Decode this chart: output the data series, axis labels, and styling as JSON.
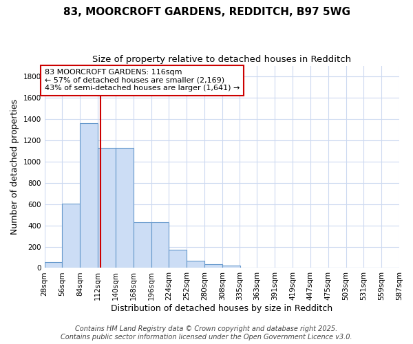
{
  "title_line1": "83, MOORCROFT GARDENS, REDDITCH, B97 5WG",
  "title_line2": "Size of property relative to detached houses in Redditch",
  "xlabel": "Distribution of detached houses by size in Redditch",
  "ylabel": "Number of detached properties",
  "background_color": "#ffffff",
  "plot_bg_color": "#ffffff",
  "bar_color": "#ccddf5",
  "bar_edge_color": "#6699cc",
  "grid_color": "#ccd9f0",
  "bin_edges": [
    28,
    56,
    84,
    112,
    140,
    168,
    196,
    224,
    252,
    280,
    308,
    335,
    363,
    391,
    419,
    447,
    475,
    503,
    531,
    559,
    587
  ],
  "bin_labels": [
    "28sqm",
    "56sqm",
    "84sqm",
    "112sqm",
    "140sqm",
    "168sqm",
    "196sqm",
    "224sqm",
    "252sqm",
    "280sqm",
    "308sqm",
    "335sqm",
    "363sqm",
    "391sqm",
    "419sqm",
    "447sqm",
    "475sqm",
    "503sqm",
    "531sqm",
    "559sqm",
    "587sqm"
  ],
  "counts": [
    56,
    605,
    1360,
    1130,
    1130,
    430,
    430,
    170,
    65,
    35,
    20,
    5,
    5,
    0,
    0,
    0,
    0,
    0,
    0,
    0
  ],
  "property_size": 116,
  "red_line_color": "#cc0000",
  "annotation_text": "83 MOORCROFT GARDENS: 116sqm\n← 57% of detached houses are smaller (2,169)\n43% of semi-detached houses are larger (1,641) →",
  "annotation_box_color": "#ffffff",
  "annotation_border_color": "#cc0000",
  "ylim": [
    0,
    1900
  ],
  "yticks": [
    0,
    200,
    400,
    600,
    800,
    1000,
    1200,
    1400,
    1600,
    1800
  ],
  "footer_line1": "Contains HM Land Registry data © Crown copyright and database right 2025.",
  "footer_line2": "Contains public sector information licensed under the Open Government Licence v3.0.",
  "title_fontsize": 11,
  "subtitle_fontsize": 9.5,
  "axis_label_fontsize": 9,
  "tick_fontsize": 7.5,
  "annotation_fontsize": 8,
  "footer_fontsize": 7
}
